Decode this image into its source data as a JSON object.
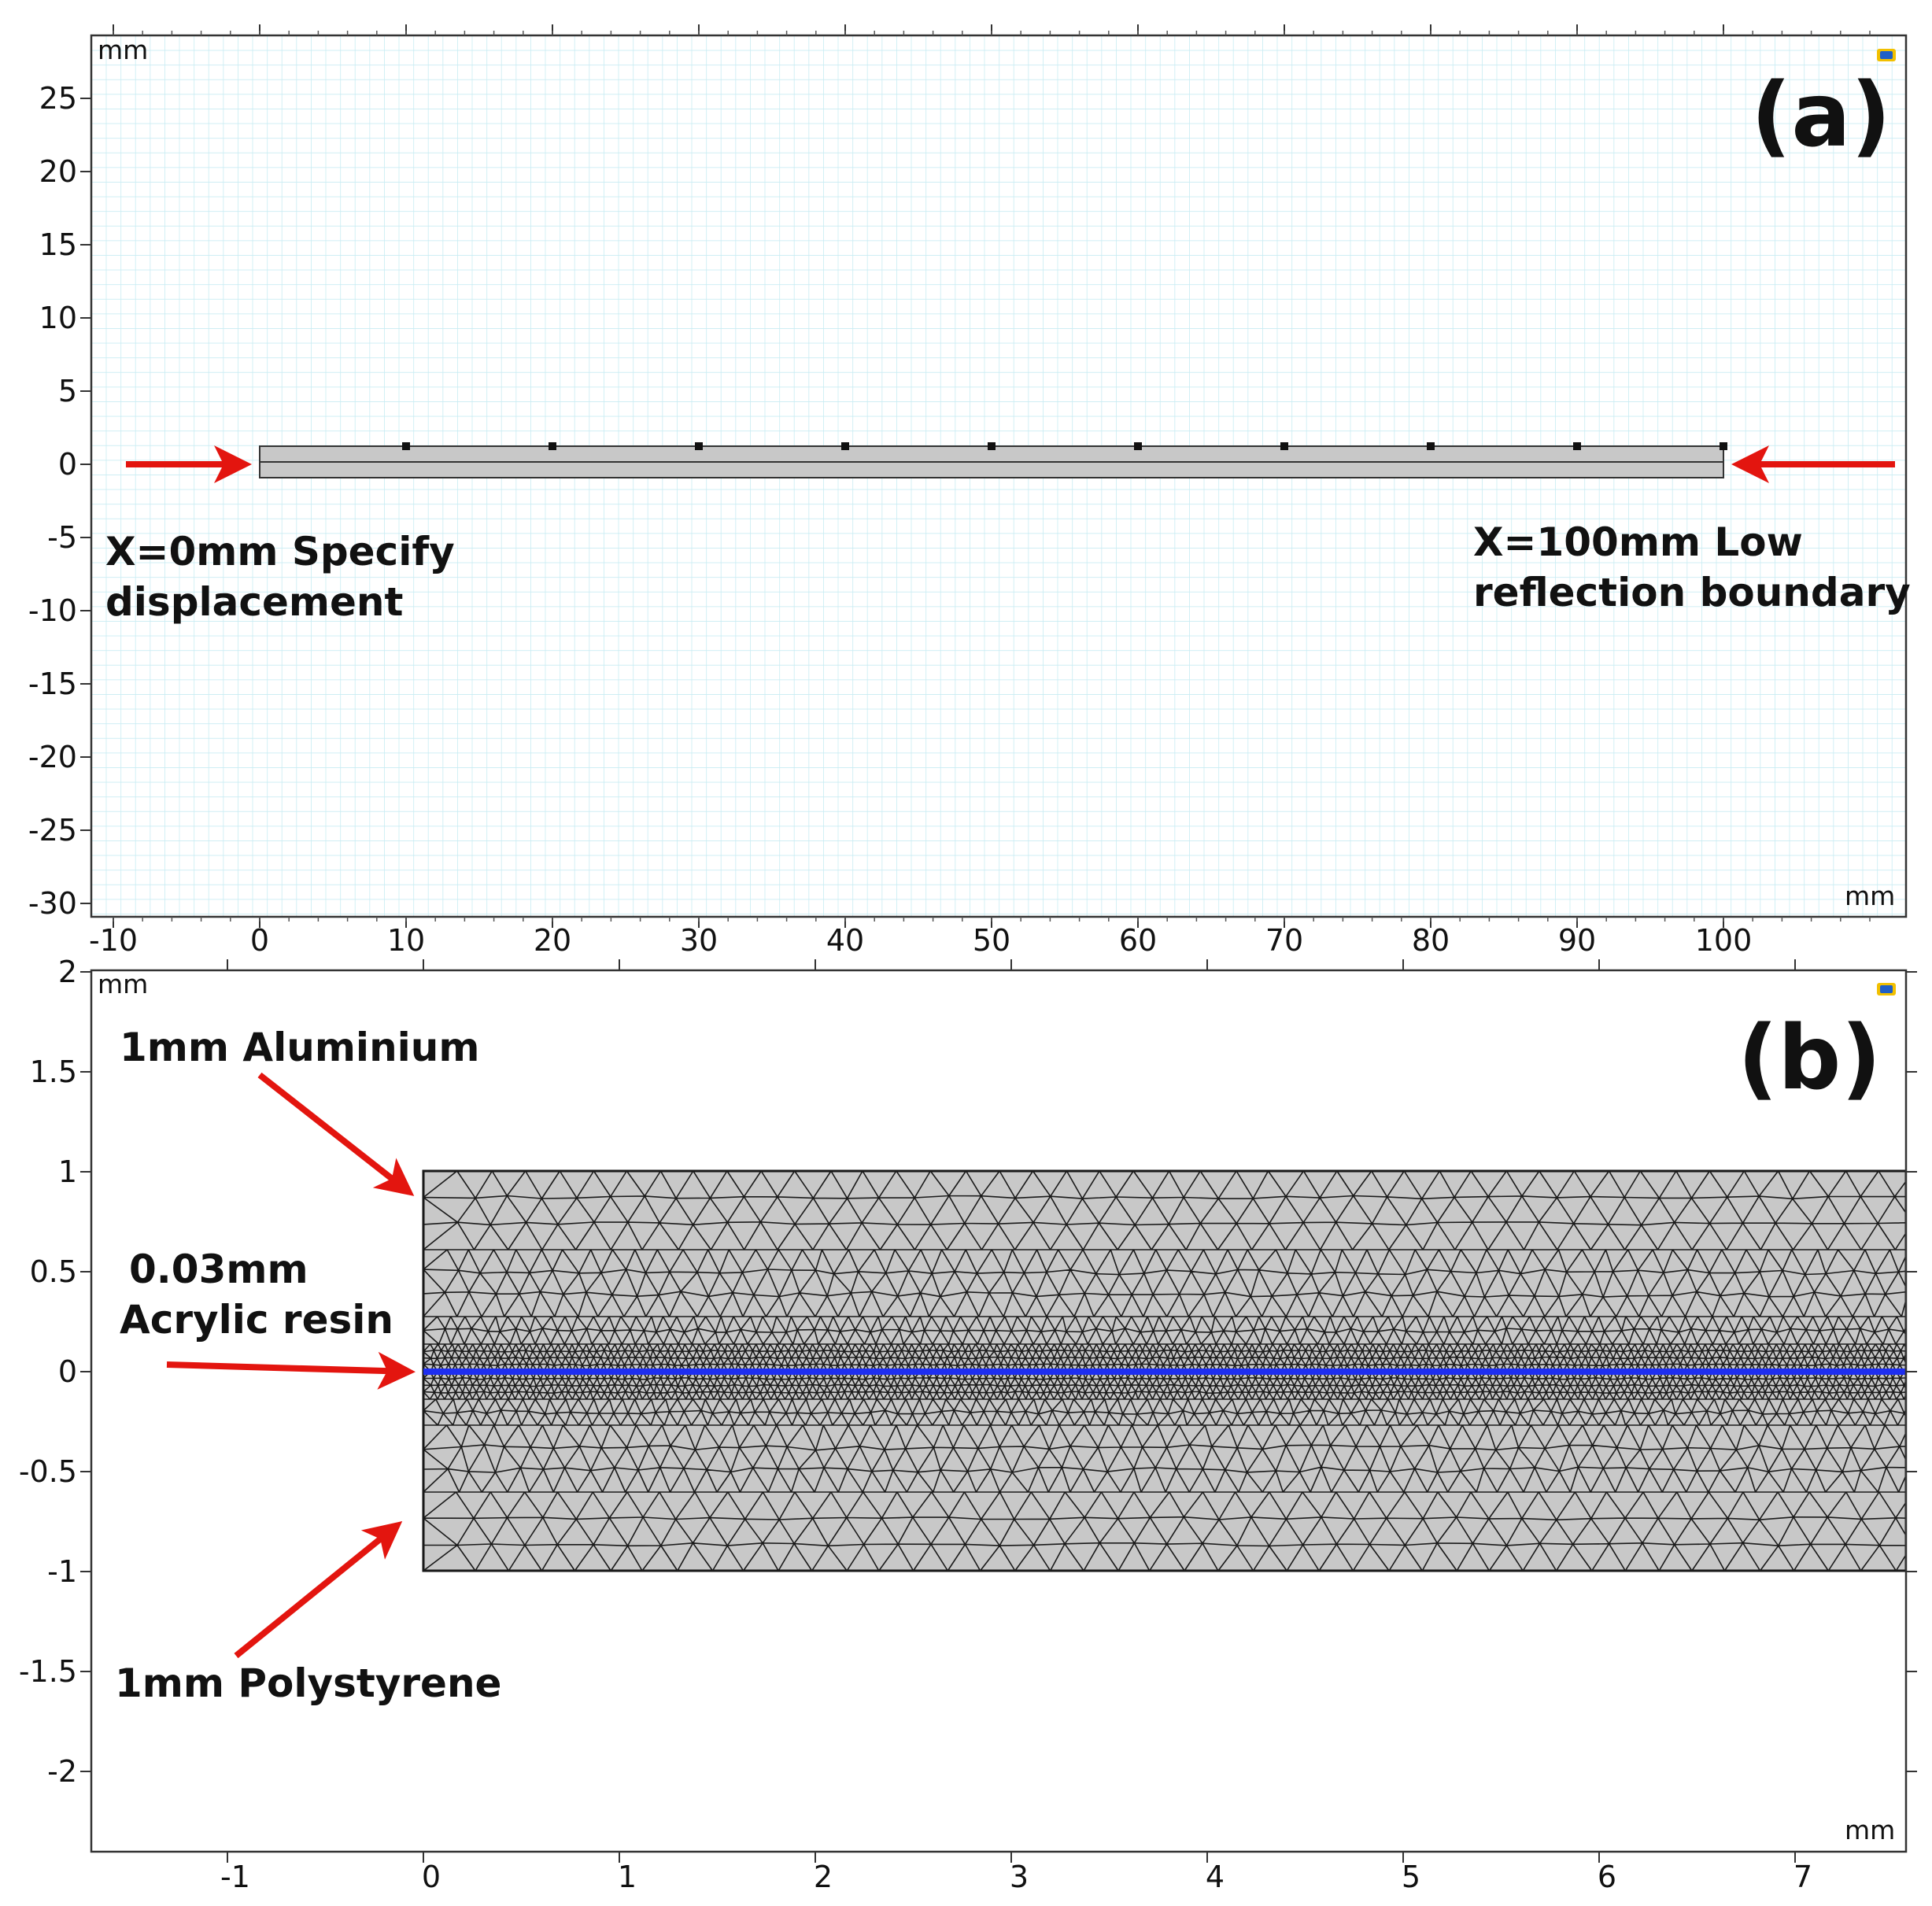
{
  "panel_a": {
    "tag": "(a)",
    "unit_top": "mm",
    "unit_bottom": "mm",
    "x_ticks": [
      "-10",
      "0",
      "10",
      "20",
      "30",
      "40",
      "50",
      "60",
      "70",
      "80",
      "90",
      "100"
    ],
    "y_ticks": [
      "25",
      "20",
      "15",
      "10",
      "5",
      "0",
      "-5",
      "-10",
      "-15",
      "-20",
      "-25",
      "-30"
    ],
    "left_note": [
      "X=0mm Specify",
      "displacement"
    ],
    "right_note": [
      "X=100mm Low",
      "reflection boundary"
    ],
    "sensor_positions_mm": [
      10,
      20,
      30,
      40,
      50,
      60,
      70,
      80,
      90,
      100
    ],
    "plate_length_mm": 100,
    "colors": {
      "grid": "#c8ecf3",
      "plate": "#c8c8c8",
      "arrow": "#e3150f"
    }
  },
  "panel_b": {
    "tag": "(b)",
    "unit_top": "mm",
    "unit_bottom": "mm",
    "x_ticks": [
      "-1",
      "0",
      "1",
      "2",
      "3",
      "4",
      "5",
      "6",
      "7"
    ],
    "y_ticks": [
      "2",
      "1.5",
      "1",
      "0.5",
      "0",
      "-0.5",
      "-1",
      "-1.5",
      "-2"
    ],
    "label_aluminium": "1mm Aluminium",
    "label_resin": [
      "0.03mm",
      "Acrylic resin"
    ],
    "label_polystyrene": "1mm Polystyrene",
    "colors": {
      "mesh_fill": "#c8c8c8",
      "mesh_line": "#1a1a1a",
      "interface": "#1e2ef0",
      "arrow": "#e3150f"
    }
  }
}
